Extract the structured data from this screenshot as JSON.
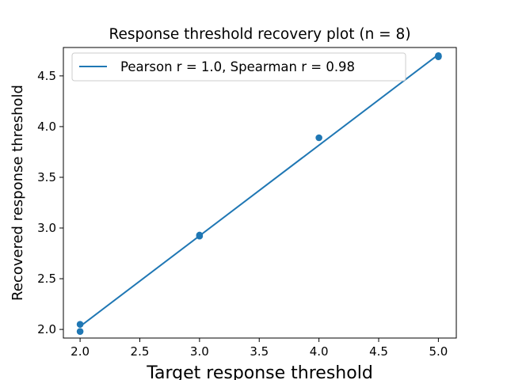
{
  "chart_data": {
    "type": "scatter",
    "title": "Response threshold recovery plot (n = 8)",
    "xlabel": "Target response threshold",
    "ylabel": "Recovered response threshold",
    "xlim": [
      1.86,
      5.15
    ],
    "ylim": [
      1.915,
      4.78
    ],
    "xticks": [
      2.0,
      2.5,
      3.0,
      3.5,
      4.0,
      4.5,
      5.0
    ],
    "xtick_labels": [
      "2.0",
      "2.5",
      "3.0",
      "3.5",
      "4.0",
      "4.5",
      "5.0"
    ],
    "yticks": [
      2.0,
      2.5,
      3.0,
      3.5,
      4.0,
      4.5
    ],
    "ytick_labels": [
      "2.0",
      "2.5",
      "3.0",
      "3.5",
      "4.0",
      "4.5"
    ],
    "grid": false,
    "legend_position": "upper left",
    "series": [
      {
        "kind": "points",
        "color": "#1f77b4",
        "x": [
          2.0,
          2.0,
          3.0,
          3.0,
          4.0,
          5.0,
          5.0,
          5.0
        ],
        "y": [
          1.98,
          2.05,
          2.92,
          2.93,
          3.89,
          4.69,
          4.7,
          4.69
        ]
      },
      {
        "kind": "fit-line",
        "name": "Pearson r = 1.0, Spearman r = 0.98",
        "color": "#1f77b4",
        "x": [
          2.0,
          5.0
        ],
        "y": [
          2.03,
          4.71
        ]
      }
    ]
  }
}
